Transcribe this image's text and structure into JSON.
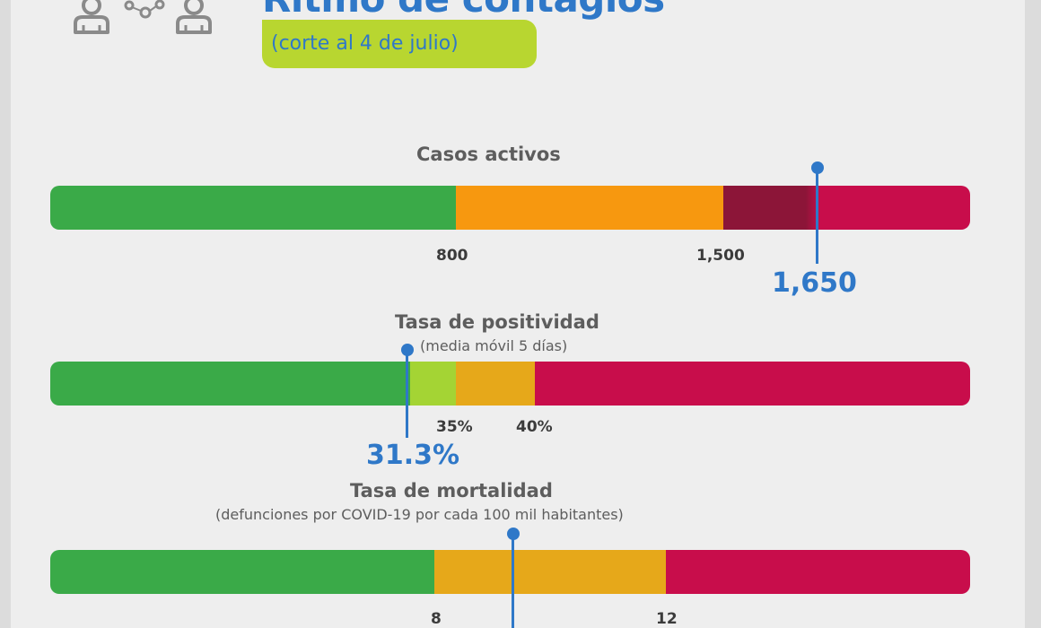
{
  "header": {
    "title": "Ritmo de contagios",
    "subtitle": "(corte al 4 de julio)"
  },
  "icons": [
    "person-left-icon",
    "virus-spread-icon",
    "person-right-icon"
  ],
  "colors": {
    "green": "#3aaa48",
    "lime": "#a4d434",
    "orange": "#f7980f",
    "amber": "#e6a81a",
    "maroon": "#8c1538",
    "red": "#c80d4b",
    "accent_blue": "#2f78c8",
    "pill": "#b8d630"
  },
  "indicators": {
    "active_cases": {
      "title": "Casos activos",
      "ticks": [
        "800",
        "1,500"
      ],
      "value": "1,650"
    },
    "positivity": {
      "title": "Tasa de positividad",
      "subtitle": "(media móvil 5 días)",
      "ticks": [
        "35%",
        "40%"
      ],
      "value": "31.3%"
    },
    "mortality": {
      "title": "Tasa de mortalidad",
      "subtitle": "(defunciones por COVID-19 por cada 100 mil habitantes)",
      "ticks": [
        "8",
        "12"
      ],
      "value": ""
    }
  }
}
